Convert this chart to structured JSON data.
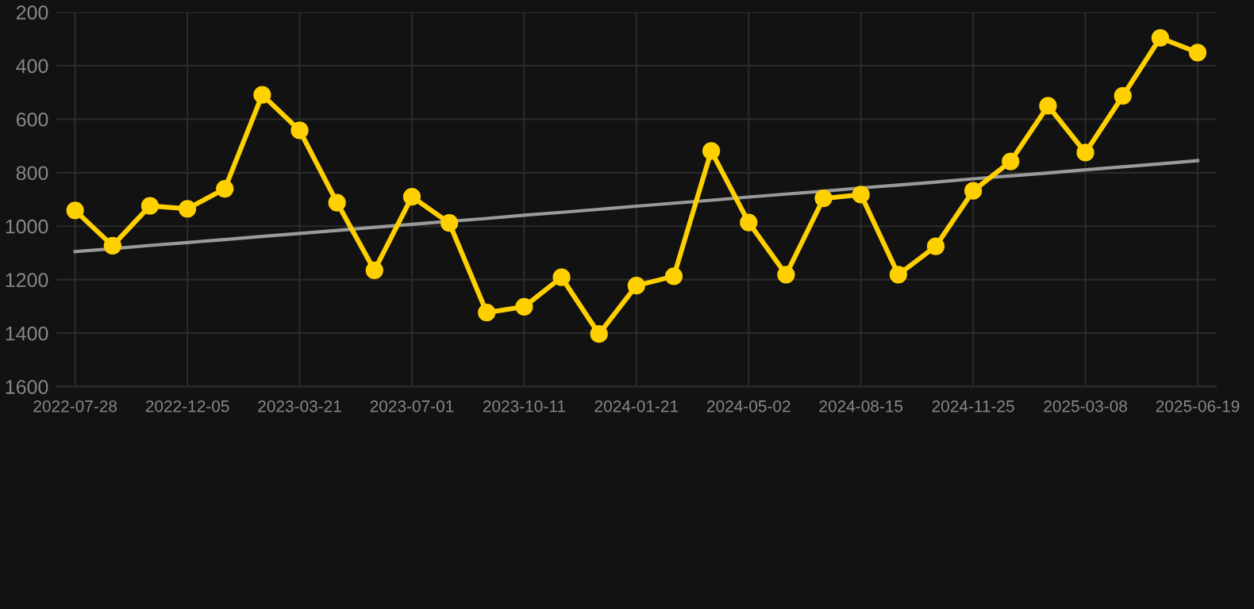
{
  "chart_data": {
    "type": "line",
    "categories": [
      "2022-07-28",
      null,
      null,
      "2022-12-05",
      null,
      null,
      "2023-03-21",
      null,
      null,
      "2023-07-01",
      null,
      null,
      "2023-10-11",
      null,
      null,
      "2024-01-21",
      null,
      null,
      "2024-05-02",
      null,
      null,
      "2024-08-15",
      null,
      null,
      "2024-11-25",
      null,
      null,
      "2025-03-08",
      null,
      null,
      "2025-06-19"
    ],
    "series": [
      {
        "color": "#9a9a9a",
        "marker": "none",
        "values": [
          1095,
          1084,
          1072,
          1061,
          1050,
          1038,
          1027,
          1016,
          1004,
          993,
          982,
          971,
          959,
          948,
          937,
          925,
          914,
          903,
          891,
          880,
          869,
          857,
          846,
          835,
          823,
          812,
          801,
          789,
          778,
          767,
          755
        ]
      },
      {
        "color": "#ffd000",
        "marker": "circle",
        "values": [
          941,
          1073,
          924,
          935,
          860,
          509,
          642,
          912,
          1165,
          890,
          988,
          1323,
          1301,
          1191,
          1403,
          1222,
          1187,
          719,
          986,
          1181,
          896,
          882,
          1181,
          1075,
          868,
          758,
          550,
          725,
          513,
          296,
          351
        ]
      }
    ],
    "ylim": [
      1600,
      200
    ],
    "yticks": [
      1600,
      1400,
      1200,
      1000,
      800,
      600,
      400,
      200
    ],
    "grid": true,
    "line_style": "solid"
  }
}
